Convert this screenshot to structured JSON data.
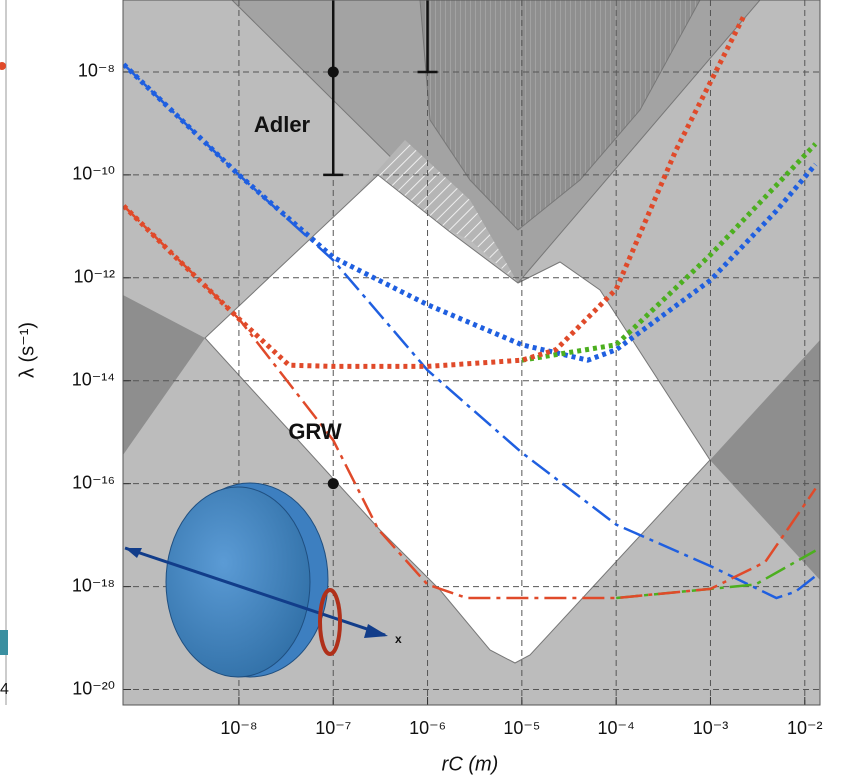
{
  "chart_data": {
    "type": "line",
    "log_x": true,
    "log_y": true,
    "grid": true,
    "xlabel": "rC (m)",
    "ylabel": "λ (s⁻¹)",
    "xlim": [
      5.9e-10,
      0.0145
    ],
    "ylim": [
      5e-21,
      2.5e-07
    ],
    "xticks": [
      {
        "value": 1e-08,
        "label": "10⁻⁸"
      },
      {
        "value": 1e-07,
        "label": "10⁻⁷"
      },
      {
        "value": 1e-06,
        "label": "10⁻⁶"
      },
      {
        "value": 1e-05,
        "label": "10⁻⁵"
      },
      {
        "value": 0.0001,
        "label": "10⁻⁴"
      },
      {
        "value": 0.001,
        "label": "10⁻³"
      },
      {
        "value": 0.01,
        "label": "10⁻²"
      }
    ],
    "yticks": [
      {
        "value": 1e-08,
        "label": "10⁻⁸"
      },
      {
        "value": 1e-10,
        "label": "10⁻¹⁰"
      },
      {
        "value": 1e-12,
        "label": "10⁻¹²"
      },
      {
        "value": 1e-14,
        "label": "10⁻¹⁴"
      },
      {
        "value": 1e-16,
        "label": "10⁻¹⁶"
      },
      {
        "value": 1e-18,
        "label": "10⁻¹⁸"
      },
      {
        "value": 1e-20,
        "label": "10⁻²⁰"
      }
    ],
    "series": [
      {
        "color": "#1f5fe0",
        "style": "dotted",
        "x": [
          6e-10,
          1e-08,
          1e-07,
          1e-06,
          1e-05,
          5e-05,
          0.0001,
          0.001,
          0.005,
          0.013
        ],
        "values": [
          1.4e-08,
          1e-10,
          2.5e-12,
          3e-13,
          5e-14,
          2.5e-14,
          4e-14,
          9e-13,
          2e-11,
          1.6e-10
        ]
      },
      {
        "color": "#1f5fe0",
        "style": "dashdot",
        "x": [
          6e-10,
          1e-08,
          1e-07,
          1e-06,
          1e-05,
          0.0001,
          0.001,
          0.005,
          0.008,
          0.013
        ],
        "values": [
          1.4e-08,
          1e-10,
          2.2e-12,
          1.6e-14,
          4e-16,
          1.6e-17,
          2.5e-18,
          6e-19,
          8e-19,
          1.6e-18
        ]
      },
      {
        "color": "#4caf1f",
        "style": "dotted",
        "x": [
          1e-05,
          0.0001,
          0.001,
          0.013
        ],
        "values": [
          2.5e-14,
          5e-14,
          2.8e-12,
          4e-10
        ]
      },
      {
        "color": "#4caf1f",
        "style": "dashdot",
        "x": [
          0.0001,
          0.001,
          0.003,
          0.013
        ],
        "values": [
          6e-19,
          9e-19,
          1.1e-18,
          5e-18
        ]
      },
      {
        "color": "#e04a2a",
        "style": "dotted",
        "x": [
          6e-10,
          2.3e-09,
          1e-08,
          3.4e-08,
          1e-07,
          1e-06,
          1e-05,
          2.3e-05,
          0.0001,
          0.00043,
          0.0023
        ],
        "values": [
          2.5e-11,
          2.2e-12,
          1.6e-13,
          2e-14,
          1.9e-14,
          1.9e-14,
          2.5e-14,
          4e-14,
          6e-13,
          3e-10,
          1.3e-07
        ]
      },
      {
        "color": "#e04a2a",
        "style": "dashdot",
        "x": [
          6e-10,
          1e-08,
          1e-07,
          3e-07,
          1e-06,
          2.6e-06,
          0.0001,
          0.001,
          0.0038,
          0.013
        ],
        "values": [
          2.5e-11,
          1.6e-13,
          7e-16,
          1.3e-17,
          1.1e-18,
          6e-19,
          6e-19,
          9e-19,
          3e-18,
          8e-17
        ]
      }
    ],
    "points": {
      "x": [
        1e-07,
        1e-07
      ],
      "values": [
        1e-08,
        1e-16
      ],
      "color": "#111111"
    },
    "error_bars": [
      {
        "x": 1e-07,
        "low": 1e-10,
        "high": 2.5e-07
      },
      {
        "x": 1e-06,
        "low": 1e-08,
        "high": 2.5e-07
      }
    ],
    "annotations": [
      "Adler",
      "GRW"
    ],
    "inset_label": "x",
    "left_panel_tick": "4"
  }
}
